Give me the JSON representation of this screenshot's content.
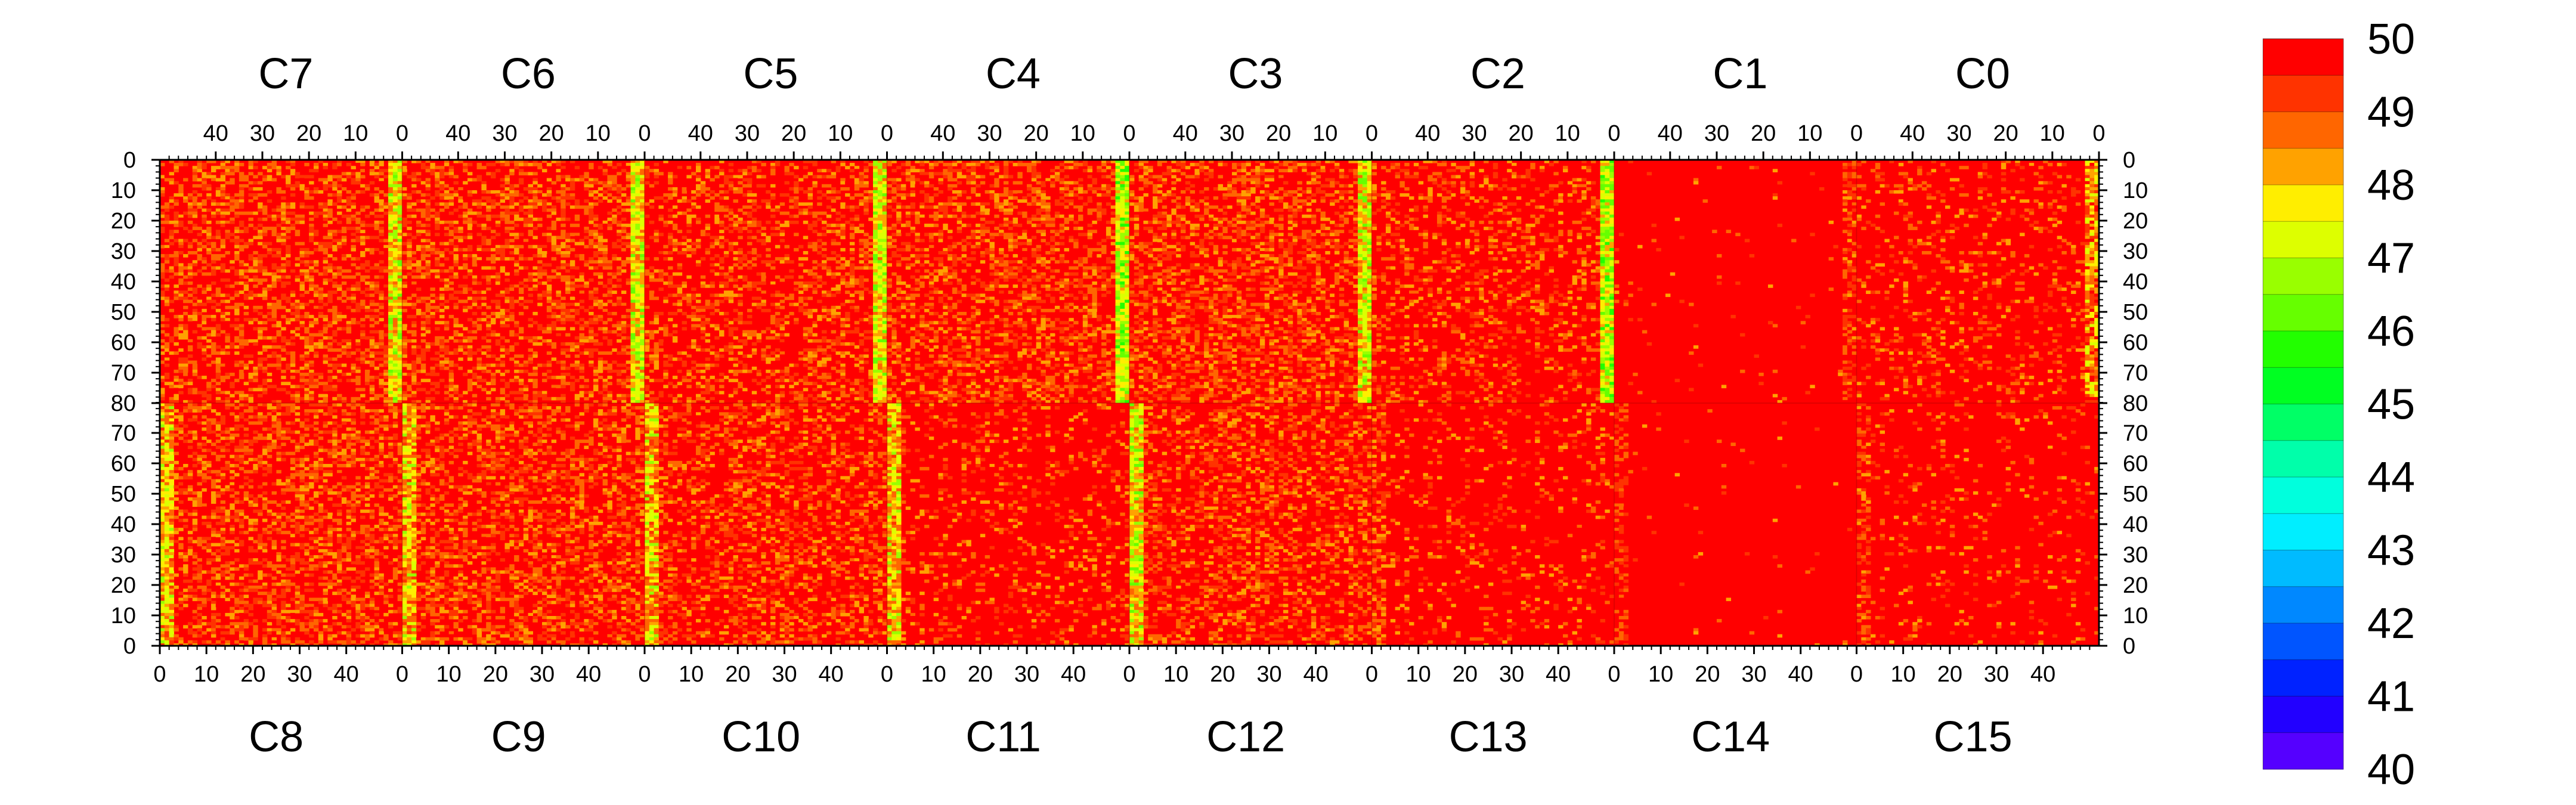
{
  "chart_data": {
    "type": "heatmap",
    "title": "",
    "xlabel": "",
    "ylabel": "",
    "top_row_labels": [
      "C7",
      "C6",
      "C5",
      "C4",
      "C3",
      "C2",
      "C1",
      "C0"
    ],
    "bottom_row_labels": [
      "C8",
      "C9",
      "C10",
      "C11",
      "C12",
      "C13",
      "C14",
      "C15"
    ],
    "top_x_ticks": [
      "40",
      "30",
      "20",
      "10",
      "0"
    ],
    "bottom_x_ticks": [
      "0",
      "10",
      "20",
      "30",
      "40"
    ],
    "top_half_y_ticks": [
      "0",
      "10",
      "20",
      "30",
      "40",
      "50",
      "60",
      "70",
      "80"
    ],
    "bottom_half_y_ticks": [
      "80",
      "70",
      "60",
      "50",
      "40",
      "30",
      "20",
      "10",
      "0"
    ],
    "x_range_per_panel": [
      0,
      52
    ],
    "y_range_per_half": [
      0,
      80
    ],
    "grid": false,
    "colorbar": {
      "min": 40,
      "max": 50,
      "labels": [
        "50",
        "49",
        "48",
        "47",
        "46",
        "45",
        "44",
        "43",
        "42",
        "41",
        "40"
      ],
      "colors_high_to_low": [
        "#ff0000",
        "#ff3300",
        "#ff6600",
        "#ffa200",
        "#ffee00",
        "#ddff00",
        "#99ff00",
        "#66ff00",
        "#22ff00",
        "#00ff22",
        "#00ff66",
        "#00ffaa",
        "#00ffdd",
        "#00eeff",
        "#00bbff",
        "#0088ff",
        "#0055ff",
        "#0022ff",
        "#2200ff",
        "#5500ff"
      ]
    },
    "panels": [
      {
        "name": "C7",
        "half": "top",
        "mean_value": 49.5,
        "low_strip_value": 47.5
      },
      {
        "name": "C6",
        "half": "top",
        "mean_value": 49.5,
        "low_strip_value": 47.5
      },
      {
        "name": "C5",
        "half": "top",
        "mean_value": 49.6,
        "low_strip_value": 47.5
      },
      {
        "name": "C4",
        "half": "top",
        "mean_value": 49.5,
        "low_strip_value": 47.0
      },
      {
        "name": "C3",
        "half": "top",
        "mean_value": 49.5,
        "low_strip_value": 47.5
      },
      {
        "name": "C2",
        "half": "top",
        "mean_value": 49.7,
        "low_strip_value": 47.0
      },
      {
        "name": "C1",
        "half": "top",
        "mean_value": 49.97,
        "low_strip_value": 49.5
      },
      {
        "name": "C0",
        "half": "top",
        "mean_value": 49.8,
        "low_strip_value": 48.5
      },
      {
        "name": "C8",
        "half": "bottom",
        "mean_value": 49.5,
        "low_strip_value": 48.0
      },
      {
        "name": "C9",
        "half": "bottom",
        "mean_value": 49.5,
        "low_strip_value": 48.0
      },
      {
        "name": "C10",
        "half": "bottom",
        "mean_value": 49.6,
        "low_strip_value": 48.0
      },
      {
        "name": "C11",
        "half": "bottom",
        "mean_value": 49.8,
        "low_strip_value": 48.0
      },
      {
        "name": "C12",
        "half": "bottom",
        "mean_value": 49.6,
        "low_strip_value": 47.5
      },
      {
        "name": "C13",
        "half": "bottom",
        "mean_value": 49.85,
        "low_strip_value": 49.5
      },
      {
        "name": "C14",
        "half": "bottom",
        "mean_value": 49.98,
        "low_strip_value": 49.9
      },
      {
        "name": "C15",
        "half": "bottom",
        "mean_value": 49.9,
        "low_strip_value": 49.5
      }
    ]
  }
}
